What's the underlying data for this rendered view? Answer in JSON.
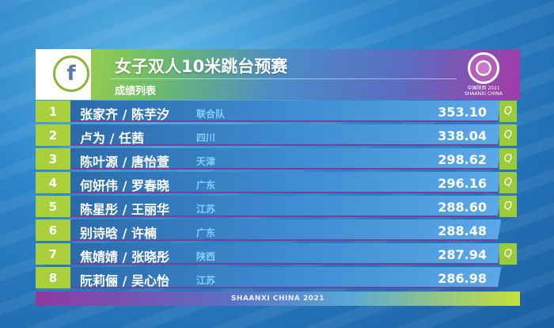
{
  "header": {
    "title": "女子双人10米跳台预赛",
    "subtitle": "成绩列表",
    "emblem_text": "中国陕西 2021 SHAANXI CHINA",
    "logo_letter": "f"
  },
  "rows": [
    {
      "rank": "1",
      "names": "张家齐 / 陈芋汐",
      "team": "联合队",
      "score": "353.10",
      "q": "Q"
    },
    {
      "rank": "2",
      "names": "卢为 / 任茜",
      "team": "四川",
      "score": "338.04",
      "q": "Q"
    },
    {
      "rank": "3",
      "names": "陈叶源 / 唐怡萱",
      "team": "天津",
      "score": "298.62",
      "q": "Q"
    },
    {
      "rank": "4",
      "names": "何妍伟 / 罗春晓",
      "team": "广东",
      "score": "296.16",
      "q": "Q"
    },
    {
      "rank": "5",
      "names": "陈星彤 / 王丽华",
      "team": "江苏",
      "score": "288.60",
      "q": "Q"
    },
    {
      "rank": "6",
      "names": "别诗晗 / 许楠",
      "team": "广东",
      "score": "288.48",
      "q": ""
    },
    {
      "rank": "7",
      "names": "焦婧婧 / 张晓彤",
      "team": "陕西",
      "score": "287.94",
      "q": "Q"
    },
    {
      "rank": "8",
      "names": "阮莉俪 / 吴心怡",
      "team": "江苏",
      "score": "286.98",
      "q": ""
    }
  ],
  "footer": {
    "text": "SHAANXI CHINA 2021"
  },
  "colors": {
    "lime": "#a9cf3a",
    "blue": "#3e8bd0",
    "purple": "#a43ba6",
    "team_text": "#7fd0ff"
  }
}
